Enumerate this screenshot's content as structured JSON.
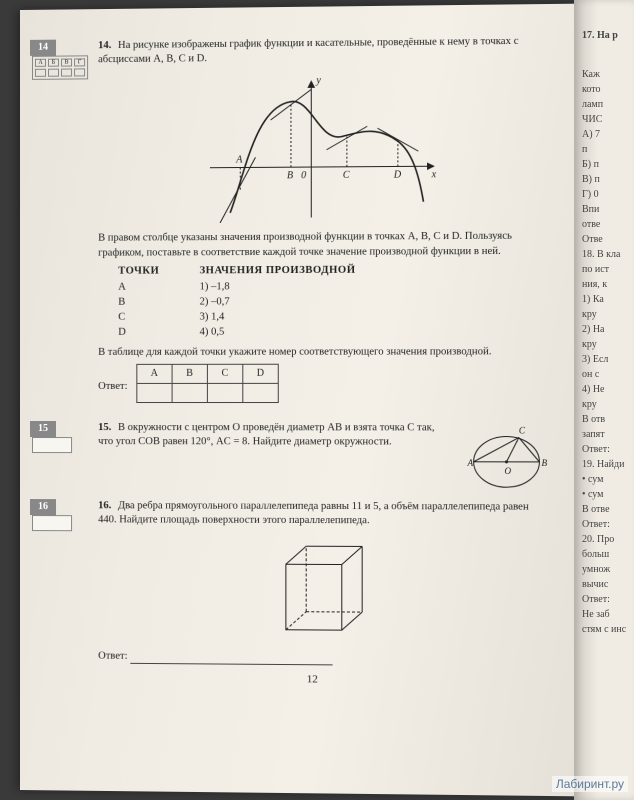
{
  "q14": {
    "num": "14",
    "num_inline": "14.",
    "abvg_headers": [
      "А",
      "Б",
      "В",
      "Г"
    ],
    "text1": "На рисунке изображены график функции и касательные, прове­дённые к нему в точках с абсциссами A, B, C и D.",
    "graph": {
      "y_label": "y",
      "x_label": "x",
      "points": [
        "A",
        "B",
        "0",
        "C",
        "D"
      ],
      "curve_color": "#222222",
      "tangent_color": "#222222",
      "axis_color": "#222222"
    },
    "text2": "В правом столбце указаны значения производной функции в точ­ках A, B, C и D. Пользуясь графиком, поставьте в соответствие каждой точке значение производной функции в ней.",
    "left_hdr": "ТОЧКИ",
    "left_items": [
      "A",
      "B",
      "C",
      "D"
    ],
    "right_hdr": "ЗНАЧЕНИЯ ПРОИЗВОДНОЙ",
    "right_items": [
      "1)  –1,8",
      "2)  –0,7",
      "3)  1,4",
      "4)  0,5"
    ],
    "text3": "В таблице для каждой точки укажите номер соответствующего значения производной.",
    "answer_label": "Ответ:",
    "table_headers": [
      "A",
      "B",
      "C",
      "D"
    ]
  },
  "q15": {
    "num": "15",
    "num_inline": "15.",
    "text": "В окружности с центром O проведён диаметр AB и взята точка C так, что угол COB равен 120°, AC = 8. Найдите диаметр окружности.",
    "diagram": {
      "labels": {
        "A": "A",
        "B": "B",
        "C": "C",
        "O": "O"
      },
      "stroke": "#222222"
    }
  },
  "q16": {
    "num": "16",
    "num_inline": "16.",
    "text": "Два ребра прямоугольного параллелепипеда равны 11 и 5, а объём параллелепипеда равен 440. Найдите площадь поверхности этого параллелепипеда.",
    "diagram": {
      "stroke": "#222222"
    },
    "answer_label": "Ответ:"
  },
  "page_number": "12",
  "right_page": {
    "q17_lead": "17.  На р",
    "lines": [
      "Каж",
      "кото",
      "ламп",
      "ЧИС",
      "А) 7",
      "    п",
      "Б) п",
      "В) п",
      "Г) 0",
      "Впи",
      "отве",
      "Отве",
      "",
      "18.  В кла",
      "по ист",
      "ния, к",
      "1) Ка",
      "   кру",
      "2) На",
      "   кру",
      "3) Есл",
      "   он с",
      "4) Не",
      "   кру",
      "В отв",
      "запят",
      "Ответ:",
      "",
      "19. Найди",
      "• сум",
      "• сум",
      "В отве",
      "Ответ:",
      "",
      "20. Про",
      "больш",
      "умнож",
      "вычис",
      "Ответ:",
      "",
      "Не заб",
      "стям с инс"
    ],
    "colors": {
      "bg": "#f0ece4",
      "text": "#444444"
    }
  },
  "watermark": "Лабиринт.ру"
}
